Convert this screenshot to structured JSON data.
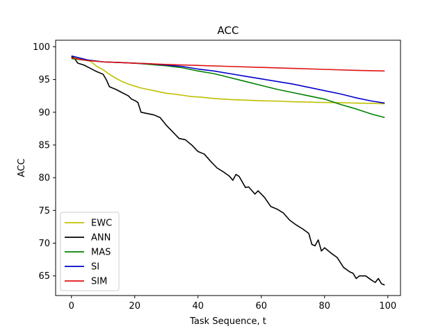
{
  "chart_data": {
    "type": "line",
    "title": "ACC",
    "xlabel": "Task Sequence, t",
    "ylabel": "ACC",
    "xlim": [
      -5,
      104
    ],
    "ylim": [
      62,
      101
    ],
    "x_ticks": [
      0,
      20,
      40,
      60,
      80,
      100
    ],
    "y_ticks": [
      65,
      70,
      75,
      80,
      85,
      90,
      95,
      100
    ],
    "grid": false,
    "legend_position": "lower-left",
    "series": [
      {
        "name": "EWC",
        "color": "#bfbf00",
        "points": [
          [
            0,
            98.4
          ],
          [
            2,
            98.3
          ],
          [
            4,
            98.0
          ],
          [
            6,
            97.8
          ],
          [
            8,
            97.0
          ],
          [
            10,
            96.5
          ],
          [
            12,
            95.8
          ],
          [
            14,
            95.2
          ],
          [
            16,
            94.7
          ],
          [
            18,
            94.3
          ],
          [
            20,
            94.0
          ],
          [
            22,
            93.7
          ],
          [
            24,
            93.5
          ],
          [
            26,
            93.3
          ],
          [
            28,
            93.1
          ],
          [
            30,
            92.9
          ],
          [
            32,
            92.8
          ],
          [
            35,
            92.6
          ],
          [
            38,
            92.4
          ],
          [
            41,
            92.3
          ],
          [
            45,
            92.1
          ],
          [
            50,
            91.95
          ],
          [
            55,
            91.85
          ],
          [
            60,
            91.75
          ],
          [
            65,
            91.7
          ],
          [
            70,
            91.6
          ],
          [
            75,
            91.55
          ],
          [
            80,
            91.5
          ],
          [
            85,
            91.45
          ],
          [
            90,
            91.4
          ],
          [
            95,
            91.35
          ],
          [
            99,
            91.3
          ]
        ]
      },
      {
        "name": "ANN",
        "color": "#000000",
        "points": [
          [
            0,
            98.5
          ],
          [
            1,
            98.2
          ],
          [
            2,
            97.5
          ],
          [
            4,
            97.2
          ],
          [
            6,
            96.7
          ],
          [
            8,
            96.2
          ],
          [
            10,
            95.8
          ],
          [
            11,
            95.0
          ],
          [
            12,
            93.9
          ],
          [
            14,
            93.5
          ],
          [
            16,
            93.0
          ],
          [
            18,
            92.5
          ],
          [
            19,
            92.0
          ],
          [
            20,
            91.8
          ],
          [
            21,
            91.5
          ],
          [
            22,
            90.0
          ],
          [
            24,
            89.8
          ],
          [
            26,
            89.6
          ],
          [
            28,
            89.2
          ],
          [
            30,
            88.0
          ],
          [
            32,
            87.0
          ],
          [
            34,
            86.0
          ],
          [
            36,
            85.8
          ],
          [
            38,
            85.0
          ],
          [
            40,
            84.0
          ],
          [
            42,
            83.6
          ],
          [
            44,
            82.5
          ],
          [
            46,
            81.5
          ],
          [
            48,
            80.9
          ],
          [
            50,
            80.2
          ],
          [
            51,
            79.6
          ],
          [
            52,
            80.5
          ],
          [
            53,
            80.2
          ],
          [
            55,
            78.5
          ],
          [
            56,
            78.6
          ],
          [
            58,
            77.5
          ],
          [
            59,
            78.0
          ],
          [
            61,
            77.0
          ],
          [
            63,
            75.6
          ],
          [
            65,
            75.2
          ],
          [
            67,
            74.6
          ],
          [
            69,
            73.5
          ],
          [
            71,
            72.8
          ],
          [
            73,
            72.2
          ],
          [
            75,
            71.5
          ],
          [
            76,
            69.8
          ],
          [
            77,
            69.6
          ],
          [
            78,
            70.5
          ],
          [
            79,
            68.8
          ],
          [
            80,
            69.3
          ],
          [
            82,
            68.5
          ],
          [
            84,
            67.8
          ],
          [
            86,
            66.3
          ],
          [
            88,
            65.6
          ],
          [
            89,
            65.4
          ],
          [
            90,
            64.6
          ],
          [
            91,
            65.0
          ],
          [
            93,
            65.0
          ],
          [
            95,
            64.3
          ],
          [
            96,
            64.0
          ],
          [
            97,
            64.6
          ],
          [
            98,
            63.8
          ],
          [
            99,
            63.6
          ]
        ]
      },
      {
        "name": "MAS",
        "color": "#008000",
        "points": [
          [
            0,
            98.2
          ],
          [
            5,
            97.9
          ],
          [
            10,
            97.7
          ],
          [
            15,
            97.6
          ],
          [
            20,
            97.5
          ],
          [
            25,
            97.3
          ],
          [
            30,
            97.1
          ],
          [
            35,
            96.8
          ],
          [
            40,
            96.3
          ],
          [
            45,
            95.9
          ],
          [
            50,
            95.3
          ],
          [
            55,
            94.7
          ],
          [
            60,
            94.1
          ],
          [
            65,
            93.5
          ],
          [
            70,
            93.0
          ],
          [
            75,
            92.5
          ],
          [
            80,
            92.0
          ],
          [
            85,
            91.2
          ],
          [
            90,
            90.5
          ],
          [
            95,
            89.7
          ],
          [
            99,
            89.2
          ]
        ]
      },
      {
        "name": "SI",
        "color": "#0000cc",
        "points": [
          [
            0,
            98.6
          ],
          [
            5,
            98.0
          ],
          [
            10,
            97.7
          ],
          [
            15,
            97.6
          ],
          [
            20,
            97.5
          ],
          [
            25,
            97.4
          ],
          [
            30,
            97.2
          ],
          [
            35,
            97.0
          ],
          [
            40,
            96.6
          ],
          [
            45,
            96.3
          ],
          [
            50,
            95.9
          ],
          [
            55,
            95.5
          ],
          [
            60,
            95.1
          ],
          [
            65,
            94.7
          ],
          [
            70,
            94.3
          ],
          [
            75,
            93.8
          ],
          [
            80,
            93.3
          ],
          [
            85,
            92.8
          ],
          [
            90,
            92.2
          ],
          [
            95,
            91.7
          ],
          [
            99,
            91.4
          ]
        ]
      },
      {
        "name": "SIM",
        "color": "#dd1111",
        "points": [
          [
            0,
            98.3
          ],
          [
            5,
            97.9
          ],
          [
            10,
            97.7
          ],
          [
            15,
            97.6
          ],
          [
            20,
            97.5
          ],
          [
            25,
            97.4
          ],
          [
            30,
            97.3
          ],
          [
            40,
            97.15
          ],
          [
            50,
            97.0
          ],
          [
            60,
            96.85
          ],
          [
            70,
            96.7
          ],
          [
            80,
            96.55
          ],
          [
            90,
            96.4
          ],
          [
            99,
            96.3
          ]
        ]
      }
    ]
  }
}
